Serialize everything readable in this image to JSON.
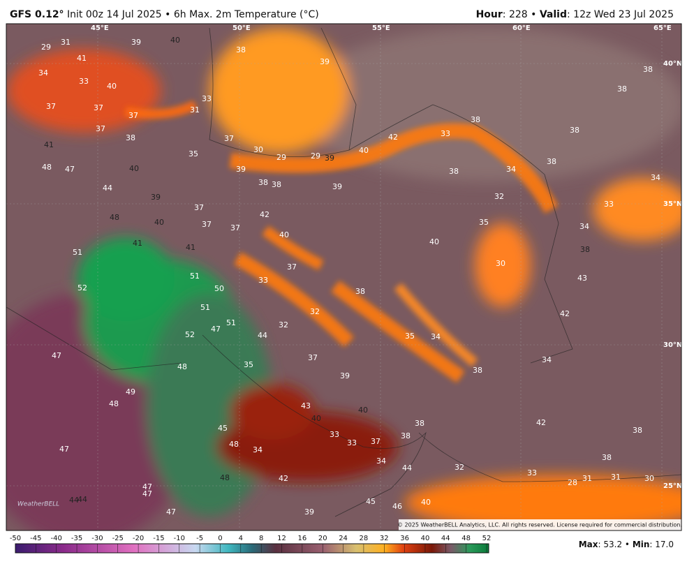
{
  "header": {
    "model": "GFS 0.12°",
    "run": "Init 00z 14 Jul 2025 • 6h Max. 2m Temperature (°C)",
    "hour_label": "Hour",
    "hour": "228",
    "valid_label": "Valid",
    "valid": "12z Wed 23 Jul 2025"
  },
  "map": {
    "coords": [
      "45°E",
      "50°E",
      "55°E",
      "60°E",
      "65°E",
      "40°N",
      "35°N",
      "30°N",
      "25°N"
    ],
    "labels": [
      29,
      31,
      39,
      40,
      38,
      39,
      34,
      33,
      40,
      41,
      37,
      37,
      37,
      31,
      33,
      37,
      38,
      41,
      37,
      30,
      29,
      29,
      39,
      40,
      42,
      33,
      38,
      38,
      38,
      38,
      48,
      47,
      35,
      40,
      39,
      38,
      38,
      39,
      38,
      34,
      38,
      34,
      44,
      39,
      32,
      33,
      37,
      48,
      40,
      37,
      42,
      37,
      35,
      34,
      41,
      40,
      40,
      38,
      41,
      51,
      30,
      37,
      43,
      52,
      51,
      50,
      33,
      38,
      51,
      32,
      42,
      47,
      51,
      32,
      44,
      52,
      35,
      34,
      47,
      48,
      35,
      37,
      39,
      38,
      34,
      49,
      48,
      40,
      43,
      42,
      38,
      40,
      45,
      48,
      34,
      33,
      33,
      37,
      38,
      38,
      34,
      32,
      44,
      38,
      33,
      47,
      48,
      42,
      47,
      47,
      44,
      44,
      47,
      45,
      46,
      39,
      40,
      28,
      31,
      31,
      30
    ],
    "copyright": "© 2025 WeatherBELL Analytics, LLC. All rights reserved. License required for commercial distribution.",
    "logo": "WeatherBELL"
  },
  "colorbar": {
    "ticks": [
      -50,
      -45,
      -40,
      -35,
      -30,
      -25,
      -20,
      -15,
      -10,
      -5,
      0,
      4,
      8,
      12,
      16,
      20,
      24,
      28,
      32,
      36,
      40,
      44,
      48,
      52
    ]
  },
  "footer": {
    "max_label": "Max",
    "max": "53.2",
    "min_label": "Min",
    "min": "17.0"
  }
}
